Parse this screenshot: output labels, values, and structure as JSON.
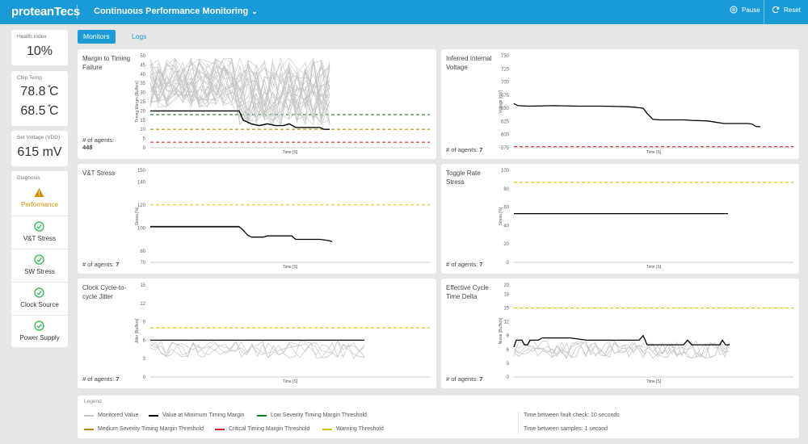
{
  "header": {
    "logo": "proteanTecs",
    "title": "Continuous Performance Monitoring",
    "pause_label": "Pause",
    "reset_label": "Reset"
  },
  "tabs": [
    {
      "label": "Monitors",
      "active": true
    },
    {
      "label": "Logs",
      "active": false
    }
  ],
  "sidebar": {
    "health": {
      "label": "Health Index",
      "value": "10%"
    },
    "chip_temp": {
      "label": "Chip Temp",
      "values": [
        "78.8 ̊C",
        "68.5 ̊C"
      ]
    },
    "voltage": {
      "label": "Set Voltage (VDD)",
      "value": "615 mV"
    },
    "diagnosis": {
      "label": "Diagnosis",
      "items": [
        {
          "label": "Performance",
          "status": "warning",
          "icon": "warning-icon"
        },
        {
          "label": "V&T Stress",
          "status": "ok",
          "icon": "check-circle-icon"
        },
        {
          "label": "SW Stress",
          "status": "ok",
          "icon": "check-circle-icon"
        },
        {
          "label": "Clock Source",
          "status": "ok",
          "icon": "check-circle-icon"
        },
        {
          "label": "Power Supply",
          "status": "ok",
          "icon": "check-circle-icon"
        }
      ]
    }
  },
  "colors": {
    "accent": "#1a9bd7",
    "warning_orange": "#d98b00",
    "ok_green": "#2eb84c",
    "monitored": "#c4c4c4",
    "min_margin": "#000000",
    "low_threshold": "#1e7a1e",
    "medium_threshold": "#b8860b",
    "critical_threshold": "#d62828",
    "warning_threshold": "#dcc300"
  },
  "charts": [
    {
      "key": "margin",
      "title": "Margin to Timing Failure",
      "agents_label": "# of agents:",
      "agents": "448",
      "ylabel": "Timing Margin [Buffers]",
      "xlabel": "Time [S]",
      "yticks": [
        "50",
        "45",
        "40",
        "35",
        "30",
        "25",
        "20",
        "15",
        "10",
        "5",
        "0"
      ]
    },
    {
      "key": "voltage",
      "title": "Inferred Internal Voltage",
      "agents_label": "# of agents:",
      "agents": "7",
      "ylabel": "Voltage [mV]",
      "xlabel": "Time [S]",
      "yticks": [
        "750",
        "725",
        "700",
        "675",
        "650",
        "625",
        "600",
        "575"
      ]
    },
    {
      "key": "vt",
      "title": "V&T Stress",
      "agents_label": "# of agents:",
      "agents": "7",
      "ylabel": "Stress [%]",
      "xlabel": "Time [S]",
      "yticks": [
        "150",
        "140",
        "120",
        "100",
        "80",
        "70"
      ]
    },
    {
      "key": "toggle",
      "title": "Toggle Rate Stress",
      "agents_label": "# of agents:",
      "agents": "7",
      "ylabel": "Stress [%]",
      "xlabel": "Time [S]",
      "yticks": [
        "100",
        "80",
        "60",
        "40",
        "20",
        "0"
      ]
    },
    {
      "key": "jitter",
      "title": "Clock Cycle-to-cycle Jitter",
      "agents_label": "# of agents:",
      "agents": "7",
      "ylabel": "Jitter [Buffers]",
      "xlabel": "Time [S]",
      "yticks": [
        "15",
        "12",
        "9",
        "6",
        "3",
        "0"
      ]
    },
    {
      "key": "cycle",
      "title": "Effective Cycle Time Delta",
      "agents_label": "# of agents:",
      "agents": "7",
      "ylabel": "Noise [Buffers]",
      "xlabel": "Time [S]",
      "yticks": [
        "20",
        "18",
        "15",
        "12",
        "9",
        "6",
        "3",
        "0"
      ]
    }
  ],
  "legend": {
    "title": "Legend",
    "items": [
      {
        "label": "Monitored Value",
        "color": "#c4c4c4",
        "dash": false
      },
      {
        "label": "Value at Minimum Timing Margin",
        "color": "#000000",
        "dash": false
      },
      {
        "label": "Low Severity Timing Margin Threshold",
        "color": "#1e7a1e",
        "dash": true
      },
      {
        "label": "Medium Severity Timing Margin Threshold",
        "color": "#b8860b",
        "dash": true
      },
      {
        "label": "Critical Timing Margin Threshold",
        "color": "#d62828",
        "dash": true
      },
      {
        "label": "Warning Threshold",
        "color": "#dcc300",
        "dash": true
      }
    ],
    "info": [
      "Time between fault check: 10 seconds",
      "Time between samples: 1 second"
    ]
  }
}
